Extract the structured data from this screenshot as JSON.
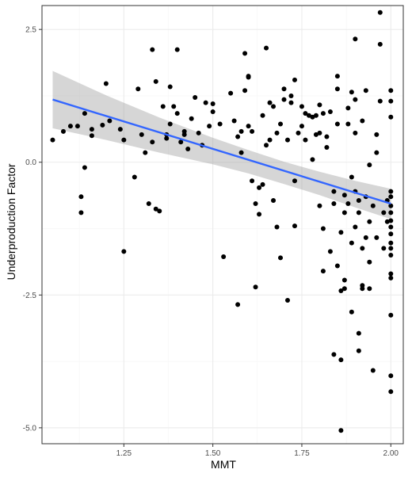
{
  "chart_data": {
    "type": "scatter",
    "title": "",
    "xlabel": "MMT",
    "ylabel": "Underproduction Factor",
    "xlim": [
      1.02,
      2.035
    ],
    "ylim": [
      -5.3,
      2.95
    ],
    "x_ticks": [
      1.25,
      1.5,
      1.75,
      2.0
    ],
    "x_tick_labels": [
      "1.25",
      "1.50",
      "1.75",
      "2.00"
    ],
    "y_ticks": [
      2.5,
      0.0,
      -2.5,
      -5.0
    ],
    "y_tick_labels": [
      "2.5",
      "0.0",
      "-2.5",
      "-5.0"
    ],
    "grid": true,
    "legend": "none",
    "colors": {
      "points": "#000000",
      "trend": "#3366FF",
      "band": "#999999",
      "panel_border": "#333333",
      "grid_major": "#ebebeb",
      "grid_minor": "#f5f5f5"
    },
    "trend_line": {
      "x": [
        1.05,
        2.0
      ],
      "y": [
        1.18,
        -0.78
      ]
    },
    "confidence_band": {
      "x": [
        1.05,
        1.2,
        1.35,
        1.5,
        1.6,
        1.7,
        1.8,
        1.9,
        2.0
      ],
      "upper": [
        1.72,
        1.26,
        0.84,
        0.46,
        0.23,
        0.01,
        -0.18,
        -0.35,
        -0.5
      ],
      "lower": [
        0.64,
        0.42,
        0.18,
        -0.04,
        -0.21,
        -0.41,
        -0.62,
        -0.85,
        -1.07
      ]
    },
    "points": [
      [
        1.05,
        0.42
      ],
      [
        1.08,
        0.58
      ],
      [
        1.1,
        0.68
      ],
      [
        1.12,
        0.68
      ],
      [
        1.13,
        -0.65
      ],
      [
        1.13,
        -0.95
      ],
      [
        1.14,
        -0.1
      ],
      [
        1.14,
        0.92
      ],
      [
        1.16,
        0.62
      ],
      [
        1.16,
        0.5
      ],
      [
        1.19,
        0.7
      ],
      [
        1.2,
        1.48
      ],
      [
        1.21,
        0.78
      ],
      [
        1.24,
        0.62
      ],
      [
        1.25,
        0.42
      ],
      [
        1.25,
        -1.68
      ],
      [
        1.28,
        -0.28
      ],
      [
        1.29,
        1.38
      ],
      [
        1.3,
        0.52
      ],
      [
        1.31,
        0.18
      ],
      [
        1.32,
        -0.78
      ],
      [
        1.33,
        0.38
      ],
      [
        1.33,
        2.12
      ],
      [
        1.34,
        -0.88
      ],
      [
        1.34,
        1.52
      ],
      [
        1.35,
        -0.92
      ],
      [
        1.36,
        1.05
      ],
      [
        1.37,
        0.52
      ],
      [
        1.37,
        0.45
      ],
      [
        1.38,
        0.72
      ],
      [
        1.38,
        1.42
      ],
      [
        1.39,
        1.05
      ],
      [
        1.4,
        2.12
      ],
      [
        1.4,
        0.92
      ],
      [
        1.41,
        0.38
      ],
      [
        1.42,
        0.52
      ],
      [
        1.42,
        0.58
      ],
      [
        1.43,
        0.25
      ],
      [
        1.44,
        0.82
      ],
      [
        1.45,
        1.22
      ],
      [
        1.46,
        0.55
      ],
      [
        1.47,
        0.32
      ],
      [
        1.48,
        1.12
      ],
      [
        1.49,
        0.68
      ],
      [
        1.5,
        1.1
      ],
      [
        1.5,
        0.95
      ],
      [
        1.52,
        0.72
      ],
      [
        1.53,
        -1.78
      ],
      [
        1.55,
        1.3
      ],
      [
        1.56,
        0.78
      ],
      [
        1.57,
        -2.68
      ],
      [
        1.57,
        0.48
      ],
      [
        1.58,
        0.18
      ],
      [
        1.58,
        0.58
      ],
      [
        1.59,
        1.35
      ],
      [
        1.59,
        2.05
      ],
      [
        1.6,
        1.6
      ],
      [
        1.6,
        1.62
      ],
      [
        1.6,
        0.68
      ],
      [
        1.61,
        0.58
      ],
      [
        1.61,
        -0.35
      ],
      [
        1.62,
        -2.35
      ],
      [
        1.62,
        -0.78
      ],
      [
        1.63,
        -0.98
      ],
      [
        1.63,
        -0.48
      ],
      [
        1.64,
        0.88
      ],
      [
        1.64,
        -0.42
      ],
      [
        1.65,
        2.15
      ],
      [
        1.65,
        0.32
      ],
      [
        1.66,
        0.42
      ],
      [
        1.66,
        1.12
      ],
      [
        1.67,
        1.05
      ],
      [
        1.67,
        -0.72
      ],
      [
        1.68,
        -1.22
      ],
      [
        1.68,
        0.55
      ],
      [
        1.69,
        -1.8
      ],
      [
        1.69,
        0.72
      ],
      [
        1.7,
        1.38
      ],
      [
        1.7,
        1.18
      ],
      [
        1.71,
        -2.6
      ],
      [
        1.71,
        0.42
      ],
      [
        1.72,
        1.25
      ],
      [
        1.72,
        1.12
      ],
      [
        1.73,
        -1.2
      ],
      [
        1.73,
        -0.35
      ],
      [
        1.73,
        1.55
      ],
      [
        1.74,
        0.55
      ],
      [
        1.75,
        1.05
      ],
      [
        1.75,
        0.68
      ],
      [
        1.76,
        0.42
      ],
      [
        1.76,
        0.92
      ],
      [
        1.77,
        0.88
      ],
      [
        1.78,
        0.85
      ],
      [
        1.78,
        0.05
      ],
      [
        1.79,
        0.52
      ],
      [
        1.79,
        0.88
      ],
      [
        1.8,
        1.08
      ],
      [
        1.8,
        0.55
      ],
      [
        1.8,
        -0.82
      ],
      [
        1.81,
        0.92
      ],
      [
        1.81,
        -1.25
      ],
      [
        1.81,
        -2.05
      ],
      [
        1.82,
        0.48
      ],
      [
        1.82,
        0.28
      ],
      [
        1.83,
        -1.68
      ],
      [
        1.83,
        0.95
      ],
      [
        1.84,
        -0.55
      ],
      [
        1.84,
        -0.78
      ],
      [
        1.84,
        -3.62
      ],
      [
        1.85,
        0.72
      ],
      [
        1.85,
        1.38
      ],
      [
        1.85,
        -1.95
      ],
      [
        1.85,
        1.62
      ],
      [
        1.86,
        -2.42
      ],
      [
        1.86,
        -3.72
      ],
      [
        1.86,
        -5.05
      ],
      [
        1.86,
        -1.32
      ],
      [
        1.87,
        -2.22
      ],
      [
        1.87,
        -2.38
      ],
      [
        1.87,
        -0.95
      ],
      [
        1.87,
        -0.62
      ],
      [
        1.88,
        1.02
      ],
      [
        1.88,
        0.72
      ],
      [
        1.88,
        -0.78
      ],
      [
        1.89,
        1.32
      ],
      [
        1.89,
        -2.82
      ],
      [
        1.89,
        -0.28
      ],
      [
        1.89,
        -1.52
      ],
      [
        1.9,
        2.32
      ],
      [
        1.9,
        1.18
      ],
      [
        1.9,
        0.55
      ],
      [
        1.9,
        -0.55
      ],
      [
        1.9,
        -1.22
      ],
      [
        1.91,
        -3.55
      ],
      [
        1.91,
        -3.22
      ],
      [
        1.91,
        -0.95
      ],
      [
        1.91,
        -0.72
      ],
      [
        1.92,
        -2.32
      ],
      [
        1.92,
        -2.38
      ],
      [
        1.92,
        -1.62
      ],
      [
        1.92,
        0.78
      ],
      [
        1.93,
        1.35
      ],
      [
        1.93,
        -0.65
      ],
      [
        1.93,
        -1.42
      ],
      [
        1.94,
        -0.05
      ],
      [
        1.94,
        -1.12
      ],
      [
        1.94,
        -1.88
      ],
      [
        1.94,
        -2.38
      ],
      [
        1.95,
        -3.92
      ],
      [
        1.95,
        -0.82
      ],
      [
        1.96,
        -1.42
      ],
      [
        1.96,
        0.18
      ],
      [
        1.96,
        0.52
      ],
      [
        1.97,
        2.82
      ],
      [
        1.97,
        2.22
      ],
      [
        1.97,
        1.15
      ],
      [
        1.98,
        -0.95
      ],
      [
        1.98,
        -1.62
      ],
      [
        1.99,
        -0.72
      ],
      [
        1.99,
        -1.12
      ],
      [
        2.0,
        1.35
      ],
      [
        2.0,
        1.15
      ],
      [
        2.0,
        0.85
      ],
      [
        2.0,
        -0.55
      ],
      [
        2.0,
        -0.65
      ],
      [
        2.0,
        -0.82
      ],
      [
        2.0,
        -0.95
      ],
      [
        2.0,
        -1.1
      ],
      [
        2.0,
        -1.22
      ],
      [
        2.0,
        -1.35
      ],
      [
        2.0,
        -1.52
      ],
      [
        2.0,
        -1.62
      ],
      [
        2.0,
        -1.75
      ],
      [
        2.0,
        -2.1
      ],
      [
        2.0,
        -2.18
      ],
      [
        2.0,
        -2.88
      ],
      [
        2.0,
        -4.02
      ],
      [
        2.0,
        -4.32
      ]
    ]
  }
}
